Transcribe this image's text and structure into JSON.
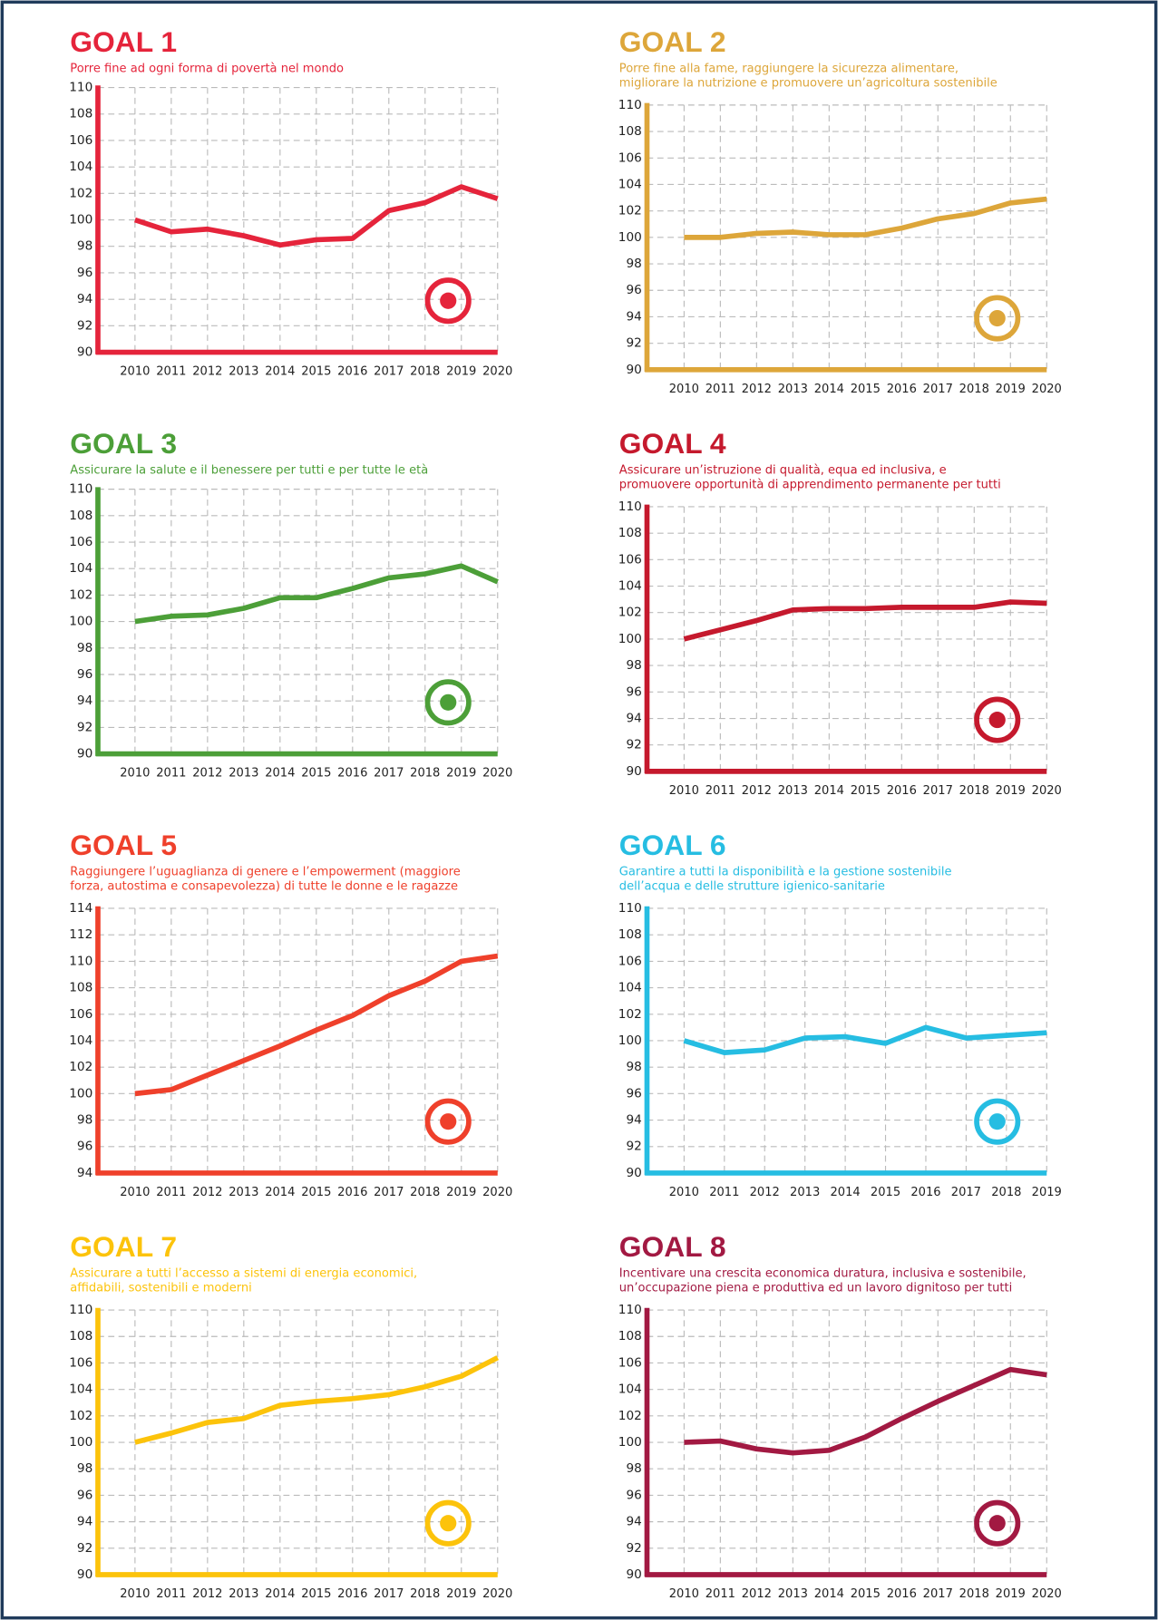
{
  "chart_data": [
    {
      "type": "line",
      "title": "GOAL 1",
      "subtitle": [
        "Porre fine ad ogni forma di povertà nel mondo"
      ],
      "color": "#e5243b",
      "categories": [
        "2010",
        "2011",
        "2012",
        "2013",
        "2014",
        "2015",
        "2016",
        "2017",
        "2018",
        "2019",
        "2020"
      ],
      "values": [
        100,
        99.1,
        99.3,
        98.8,
        98.1,
        98.5,
        98.6,
        100.7,
        101.3,
        102.5,
        101.6
      ],
      "ylim": [
        90,
        110
      ],
      "yticks": [
        90,
        92,
        94,
        96,
        98,
        100,
        102,
        104,
        106,
        108,
        110
      ],
      "grid": true
    },
    {
      "type": "line",
      "title": "GOAL 2",
      "subtitle": [
        "Porre fine alla fame, raggiungere la sicurezza alimentare,",
        "migliorare la nutrizione e promuovere un’agricoltura sostenibile"
      ],
      "color": "#dda63a",
      "categories": [
        "2010",
        "2011",
        "2012",
        "2013",
        "2014",
        "2015",
        "2016",
        "2017",
        "2018",
        "2019",
        "2020"
      ],
      "values": [
        100,
        100,
        100.3,
        100.4,
        100.2,
        100.2,
        100.7,
        101.4,
        101.8,
        102.6,
        102.9
      ],
      "ylim": [
        90,
        110
      ],
      "yticks": [
        90,
        92,
        94,
        96,
        98,
        100,
        102,
        104,
        106,
        108,
        110
      ],
      "grid": true
    },
    {
      "type": "line",
      "title": "GOAL 3",
      "subtitle": [
        "Assicurare la salute e il benessere per tutti e per tutte le età"
      ],
      "color": "#4c9f38",
      "categories": [
        "2010",
        "2011",
        "2012",
        "2013",
        "2014",
        "2015",
        "2016",
        "2017",
        "2018",
        "2019",
        "2020"
      ],
      "values": [
        100,
        100.4,
        100.5,
        101,
        101.8,
        101.8,
        102.5,
        103.3,
        103.6,
        104.2,
        103
      ],
      "ylim": [
        90,
        110
      ],
      "yticks": [
        90,
        92,
        94,
        96,
        98,
        100,
        102,
        104,
        106,
        108,
        110
      ],
      "grid": true
    },
    {
      "type": "line",
      "title": "GOAL 4",
      "subtitle": [
        "Assicurare un’istruzione di qualità, equa ed inclusiva, e",
        "promuovere opportunità di apprendimento permanente per tutti"
      ],
      "color": "#c5192d",
      "categories": [
        "2010",
        "2011",
        "2012",
        "2013",
        "2014",
        "2015",
        "2016",
        "2017",
        "2018",
        "2019",
        "2020"
      ],
      "values": [
        100,
        100.7,
        101.4,
        102.2,
        102.3,
        102.3,
        102.4,
        102.4,
        102.4,
        102.8,
        102.7
      ],
      "ylim": [
        90,
        110
      ],
      "yticks": [
        90,
        92,
        94,
        96,
        98,
        100,
        102,
        104,
        106,
        108,
        110
      ],
      "grid": true
    },
    {
      "type": "line",
      "title": "GOAL 5",
      "subtitle": [
        "Raggiungere l’uguaglianza di genere e l’empowerment (maggiore",
        "forza, autostima e consapevolezza) di tutte le donne e le ragazze"
      ],
      "color": "#ef402b",
      "categories": [
        "2010",
        "2011",
        "2012",
        "2013",
        "2014",
        "2015",
        "2016",
        "2017",
        "2018",
        "2019",
        "2020"
      ],
      "values": [
        100,
        100.3,
        101.4,
        102.5,
        103.6,
        104.8,
        105.9,
        107.4,
        108.5,
        110,
        110.4
      ],
      "ylim": [
        94,
        114
      ],
      "yticks": [
        94,
        96,
        98,
        100,
        102,
        104,
        106,
        108,
        110,
        112,
        114
      ],
      "grid": true
    },
    {
      "type": "line",
      "title": "GOAL 6",
      "subtitle": [
        "Garantire a tutti la disponibilità e la gestione sostenibile",
        "dell’acqua e delle strutture igienico-sanitarie"
      ],
      "color": "#26bde2",
      "categories": [
        "2010",
        "2011",
        "2012",
        "2013",
        "2014",
        "2015",
        "2016",
        "2017",
        "2018",
        "2019"
      ],
      "values": [
        100,
        99.1,
        99.3,
        100.2,
        100.3,
        99.8,
        101,
        100.2,
        100.4,
        100.6
      ],
      "ylim": [
        90,
        110
      ],
      "yticks": [
        90,
        92,
        94,
        96,
        98,
        100,
        102,
        104,
        106,
        108,
        110
      ],
      "grid": true
    },
    {
      "type": "line",
      "title": "GOAL 7",
      "subtitle": [
        "Assicurare a tutti l’accesso a sistemi di energia economici,",
        "affidabili, sostenibili e moderni"
      ],
      "color": "#fcc30b",
      "categories": [
        "2010",
        "2011",
        "2012",
        "2013",
        "2014",
        "2015",
        "2016",
        "2017",
        "2018",
        "2019",
        "2020"
      ],
      "values": [
        100,
        100.7,
        101.5,
        101.8,
        102.8,
        103.1,
        103.3,
        103.6,
        104.2,
        105,
        106.4
      ],
      "ylim": [
        90,
        110
      ],
      "yticks": [
        90,
        92,
        94,
        96,
        98,
        100,
        102,
        104,
        106,
        108,
        110
      ],
      "grid": true
    },
    {
      "type": "line",
      "title": "GOAL 8",
      "subtitle": [
        "Incentivare una crescita economica duratura, inclusiva e sostenibile,",
        "un’occupazione piena e produttiva ed un lavoro dignitoso per tutti"
      ],
      "color": "#a21942",
      "categories": [
        "2010",
        "2011",
        "2012",
        "2013",
        "2014",
        "2015",
        "2016",
        "2017",
        "2018",
        "2019",
        "2020"
      ],
      "values": [
        100,
        100.1,
        99.5,
        99.2,
        99.4,
        100.4,
        101.8,
        103.1,
        104.3,
        105.5,
        105.1
      ],
      "ylim": [
        90,
        110
      ],
      "yticks": [
        90,
        92,
        94,
        96,
        98,
        100,
        102,
        104,
        106,
        108,
        110
      ],
      "grid": true
    }
  ]
}
